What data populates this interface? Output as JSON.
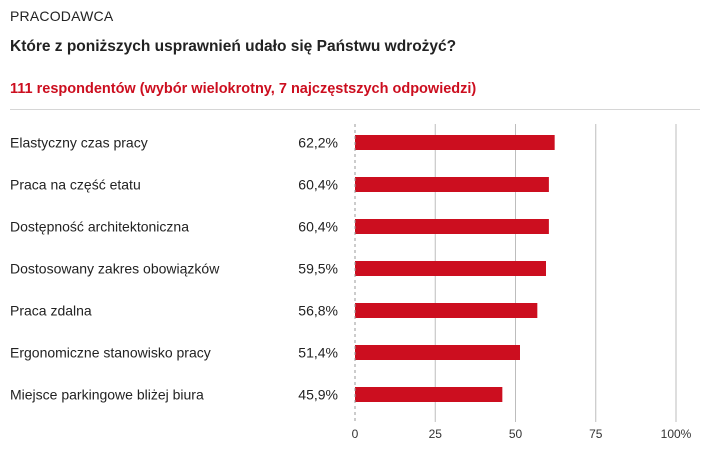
{
  "header": {
    "section": "PRACODAWCA",
    "question": "Które z poniższych usprawnień udało się Państwu wdrożyć?",
    "subtitle": "111 respondentów (wybór wielokrotny, 7 najczęstszych odpowiedzi)"
  },
  "colors": {
    "bar": "#cc0e1f",
    "subtitle": "#cc0e1f",
    "grid": "#bdbdbd"
  },
  "chart_data": {
    "type": "bar",
    "orientation": "horizontal",
    "categories": [
      "Elastyczny czas pracy",
      "Praca na część etatu",
      "Dostępność architektoniczna",
      "Dostosowany zakres obowiązków",
      "Praca zdalna",
      "Ergonomiczne stanowisko pracy",
      "Miejsce parkingowe bliżej biura"
    ],
    "values": [
      62.2,
      60.4,
      60.4,
      59.5,
      56.8,
      51.4,
      45.9
    ],
    "value_labels": [
      "62,2%",
      "60,4%",
      "60,4%",
      "59,5%",
      "56,8%",
      "51,4%",
      "45,9%"
    ],
    "xlim": [
      0,
      100
    ],
    "xticks": [
      0,
      25,
      50,
      75,
      100
    ],
    "xtick_labels": [
      "0",
      "25",
      "50",
      "75",
      "100%"
    ],
    "grid": true
  }
}
